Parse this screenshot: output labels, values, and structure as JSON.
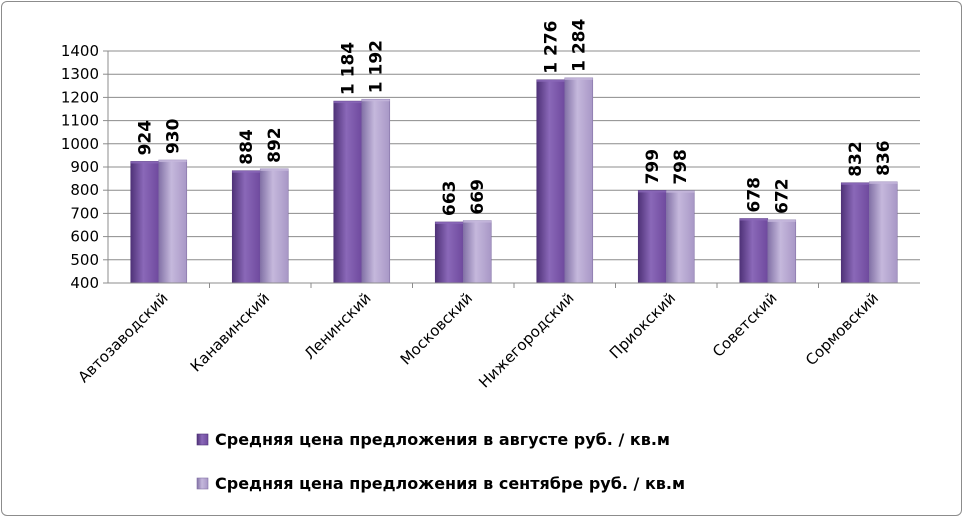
{
  "chart_data": {
    "type": "bar",
    "categories": [
      "Автозаводский",
      "Канавинский",
      "Ленинский",
      "Московский",
      "Нижегородский",
      "Приокский",
      "Советский",
      "Сормовский"
    ],
    "series": [
      {
        "name": "Средняя цена предложения в августе руб. / кв.м",
        "values": [
          924,
          884,
          1184,
          663,
          1276,
          799,
          678,
          832
        ],
        "labels": [
          "924",
          "884",
          "1 184",
          "663",
          "1 276",
          "799",
          "678",
          "832"
        ],
        "color": "#6f4a9e",
        "color_light": "#8a68b8",
        "color_dark": "#4f3278"
      },
      {
        "name": "Средняя цена предложения в сентябре руб. / кв.м",
        "values": [
          930,
          892,
          1192,
          669,
          1284,
          798,
          672,
          836
        ],
        "labels": [
          "930",
          "892",
          "1 192",
          "669",
          "1 284",
          "798",
          "672",
          "836"
        ],
        "color": "#a897c6",
        "color_light": "#c5b8dc",
        "color_dark": "#8271a6"
      }
    ],
    "ylim": [
      400,
      1400
    ],
    "yticks": [
      "400",
      "500",
      "600",
      "700",
      "800",
      "900",
      "1000",
      "1100",
      "1200",
      "1300",
      "1400"
    ],
    "grid": true,
    "legend_position": "bottom"
  }
}
